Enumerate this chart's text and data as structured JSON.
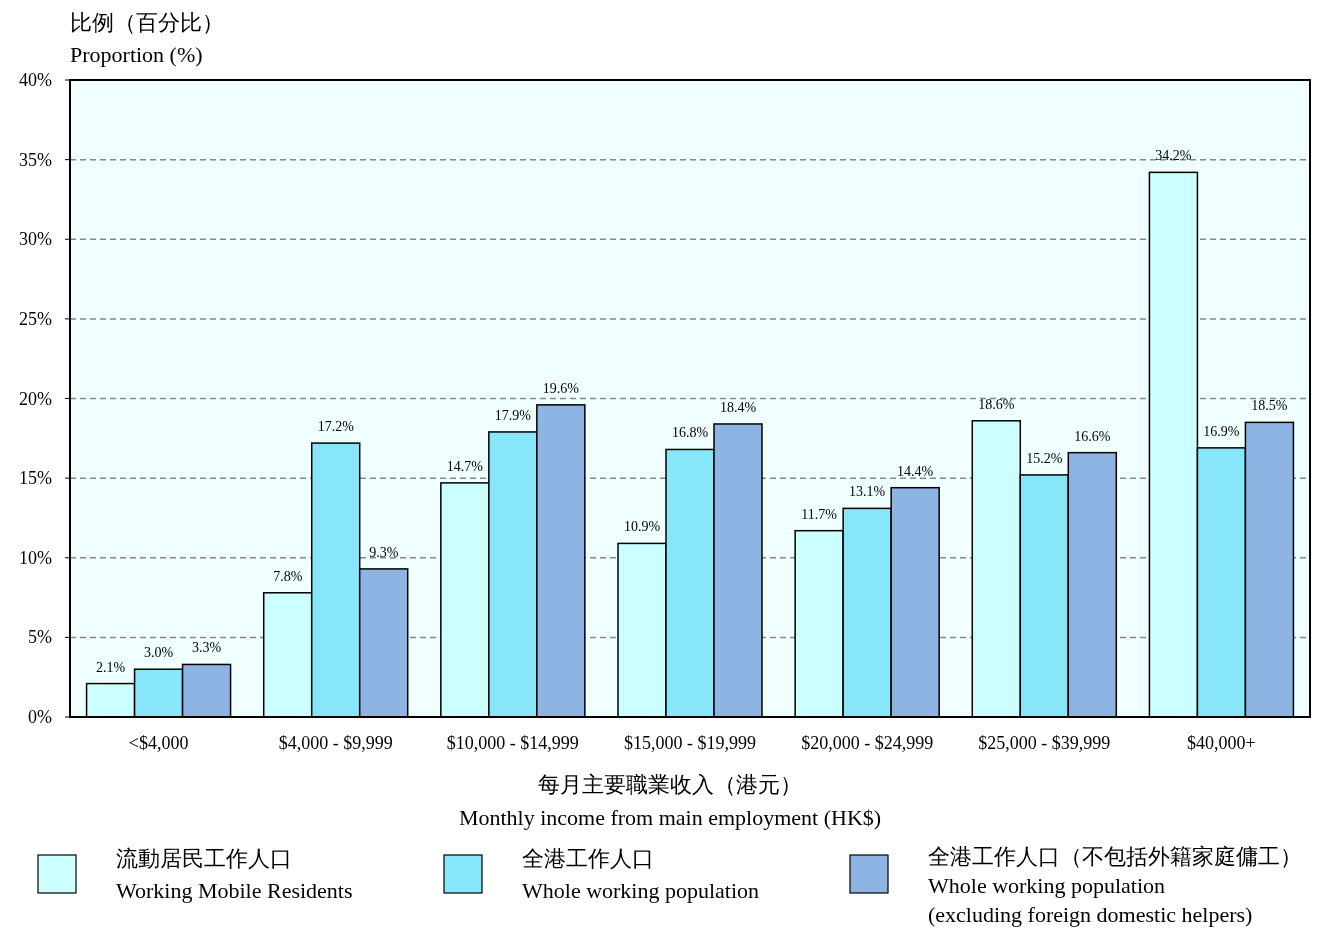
{
  "chart_data": {
    "type": "bar",
    "ylabel": "比例（百分比）\nProportion (%)",
    "xlabel": "每月主要職業收入（港元）\nMonthly income from main employment (HK$)",
    "categories": [
      "<$4,000",
      "$4,000 - $9,999",
      "$10,000 - $14,999",
      "$15,000 - $19,999",
      "$20,000 - $24,999",
      "$25,000 - $39,999",
      "$40,000+"
    ],
    "series": [
      {
        "name": "流動居民工作人口\nWorking Mobile Residents",
        "color": "#ccffff",
        "values": [
          2.1,
          7.8,
          14.7,
          10.9,
          11.7,
          18.6,
          34.2
        ],
        "value_labels": [
          "2.1%",
          "7.8%",
          "14.7%",
          "10.9%",
          "11.7%",
          "18.6%",
          "34.2%"
        ]
      },
      {
        "name": "全港工作人口\nWhole working population",
        "color": "#88e6fb",
        "values": [
          3.0,
          17.2,
          17.9,
          16.8,
          13.1,
          15.2,
          16.9
        ],
        "value_labels": [
          "3.0%",
          "17.2%",
          "17.9%",
          "16.8%",
          "13.1%",
          "15.2%",
          "16.9%"
        ]
      },
      {
        "name": "全港工作人口（不包括外籍家庭傭工）\nWhole working population\n(excluding foreign domestic helpers)",
        "color": "#8eb4e3",
        "values": [
          3.3,
          9.3,
          19.6,
          18.4,
          14.4,
          16.6,
          18.5
        ],
        "value_labels": [
          "3.3%",
          "9.3%",
          "19.6%",
          "18.4%",
          "14.4%",
          "16.6%",
          "18.5%"
        ]
      }
    ],
    "ylim": [
      0,
      40
    ],
    "yticks": [
      {
        "value": 0,
        "label": "0%"
      },
      {
        "value": 5,
        "label": "5%"
      },
      {
        "value": 10,
        "label": "10%"
      },
      {
        "value": 15,
        "label": "15%"
      },
      {
        "value": 20,
        "label": "20%"
      },
      {
        "value": 25,
        "label": "25%"
      },
      {
        "value": 30,
        "label": "30%"
      },
      {
        "value": 35,
        "label": "35%"
      },
      {
        "value": 40,
        "label": "40%"
      }
    ],
    "grid": "y",
    "legend": "bottom"
  }
}
